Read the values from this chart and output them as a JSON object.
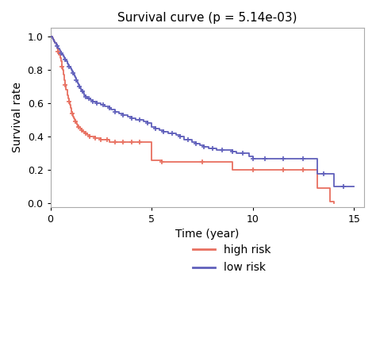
{
  "title": "Survival curve (p = 5.14e-03)",
  "xlabel": "Time (year)",
  "ylabel": "Survival rate",
  "xlim": [
    0,
    15.5
  ],
  "ylim": [
    -0.02,
    1.05
  ],
  "xticks": [
    0,
    5,
    10,
    15
  ],
  "yticks": [
    0.0,
    0.2,
    0.4,
    0.6,
    0.8,
    1.0
  ],
  "high_risk_color": "#E87060",
  "low_risk_color": "#6060BB",
  "high_risk_label": "high risk",
  "low_risk_label": "low risk",
  "background_color": "#ffffff",
  "high_risk_steps": [
    [
      0.0,
      1.0
    ],
    [
      0.08,
      0.99
    ],
    [
      0.12,
      0.98
    ],
    [
      0.18,
      0.97
    ],
    [
      0.22,
      0.96
    ],
    [
      0.28,
      0.95
    ],
    [
      0.32,
      0.93
    ],
    [
      0.38,
      0.91
    ],
    [
      0.42,
      0.89
    ],
    [
      0.48,
      0.87
    ],
    [
      0.52,
      0.85
    ],
    [
      0.56,
      0.82
    ],
    [
      0.6,
      0.8
    ],
    [
      0.65,
      0.77
    ],
    [
      0.7,
      0.74
    ],
    [
      0.74,
      0.71
    ],
    [
      0.78,
      0.68
    ],
    [
      0.82,
      0.65
    ],
    [
      0.86,
      0.63
    ],
    [
      0.9,
      0.61
    ],
    [
      0.94,
      0.59
    ],
    [
      0.98,
      0.57
    ],
    [
      1.02,
      0.55
    ],
    [
      1.06,
      0.54
    ],
    [
      1.1,
      0.52
    ],
    [
      1.14,
      0.51
    ],
    [
      1.18,
      0.5
    ],
    [
      1.22,
      0.49
    ],
    [
      1.26,
      0.48
    ],
    [
      1.3,
      0.47
    ],
    [
      1.35,
      0.46
    ],
    [
      1.4,
      0.46
    ],
    [
      1.45,
      0.45
    ],
    [
      1.5,
      0.45
    ],
    [
      1.55,
      0.44
    ],
    [
      1.6,
      0.43
    ],
    [
      1.65,
      0.43
    ],
    [
      1.7,
      0.42
    ],
    [
      1.75,
      0.42
    ],
    [
      1.8,
      0.41
    ],
    [
      1.85,
      0.41
    ],
    [
      1.9,
      0.41
    ],
    [
      1.95,
      0.4
    ],
    [
      2.0,
      0.4
    ],
    [
      2.1,
      0.4
    ],
    [
      2.2,
      0.39
    ],
    [
      2.3,
      0.39
    ],
    [
      2.4,
      0.39
    ],
    [
      2.5,
      0.38
    ],
    [
      2.6,
      0.38
    ],
    [
      2.7,
      0.38
    ],
    [
      2.8,
      0.38
    ],
    [
      2.9,
      0.37
    ],
    [
      3.0,
      0.37
    ],
    [
      3.2,
      0.37
    ],
    [
      3.4,
      0.37
    ],
    [
      3.6,
      0.37
    ],
    [
      3.8,
      0.37
    ],
    [
      4.0,
      0.37
    ],
    [
      4.2,
      0.37
    ],
    [
      4.4,
      0.37
    ],
    [
      4.6,
      0.37
    ],
    [
      4.8,
      0.37
    ],
    [
      5.0,
      0.26
    ],
    [
      5.2,
      0.26
    ],
    [
      5.5,
      0.25
    ],
    [
      6.0,
      0.25
    ],
    [
      7.0,
      0.25
    ],
    [
      8.0,
      0.25
    ],
    [
      9.0,
      0.2
    ],
    [
      10.0,
      0.2
    ],
    [
      10.5,
      0.2
    ],
    [
      11.0,
      0.2
    ],
    [
      11.5,
      0.2
    ],
    [
      12.0,
      0.2
    ],
    [
      12.5,
      0.2
    ],
    [
      13.0,
      0.2
    ],
    [
      13.2,
      0.09
    ],
    [
      13.5,
      0.09
    ],
    [
      13.8,
      0.01
    ],
    [
      14.0,
      0.0
    ]
  ],
  "high_risk_censors": [
    [
      0.38,
      0.91
    ],
    [
      0.56,
      0.82
    ],
    [
      0.74,
      0.71
    ],
    [
      0.9,
      0.61
    ],
    [
      1.06,
      0.54
    ],
    [
      1.22,
      0.49
    ],
    [
      1.4,
      0.46
    ],
    [
      1.55,
      0.44
    ],
    [
      1.75,
      0.42
    ],
    [
      1.95,
      0.4
    ],
    [
      2.2,
      0.39
    ],
    [
      2.5,
      0.38
    ],
    [
      2.8,
      0.38
    ],
    [
      3.2,
      0.37
    ],
    [
      3.6,
      0.37
    ],
    [
      4.0,
      0.37
    ],
    [
      4.4,
      0.37
    ],
    [
      5.5,
      0.25
    ],
    [
      7.5,
      0.25
    ],
    [
      10.0,
      0.2
    ],
    [
      11.5,
      0.2
    ],
    [
      12.5,
      0.2
    ]
  ],
  "low_risk_steps": [
    [
      0.0,
      1.0
    ],
    [
      0.08,
      0.99
    ],
    [
      0.13,
      0.98
    ],
    [
      0.18,
      0.97
    ],
    [
      0.23,
      0.96
    ],
    [
      0.28,
      0.95
    ],
    [
      0.33,
      0.94
    ],
    [
      0.38,
      0.93
    ],
    [
      0.43,
      0.92
    ],
    [
      0.48,
      0.91
    ],
    [
      0.53,
      0.9
    ],
    [
      0.58,
      0.89
    ],
    [
      0.63,
      0.88
    ],
    [
      0.68,
      0.87
    ],
    [
      0.73,
      0.86
    ],
    [
      0.78,
      0.85
    ],
    [
      0.83,
      0.84
    ],
    [
      0.88,
      0.83
    ],
    [
      0.93,
      0.82
    ],
    [
      0.98,
      0.81
    ],
    [
      1.02,
      0.8
    ],
    [
      1.06,
      0.79
    ],
    [
      1.1,
      0.78
    ],
    [
      1.14,
      0.77
    ],
    [
      1.18,
      0.76
    ],
    [
      1.22,
      0.75
    ],
    [
      1.26,
      0.74
    ],
    [
      1.3,
      0.73
    ],
    [
      1.34,
      0.72
    ],
    [
      1.38,
      0.71
    ],
    [
      1.42,
      0.7
    ],
    [
      1.46,
      0.69
    ],
    [
      1.5,
      0.68
    ],
    [
      1.54,
      0.67
    ],
    [
      1.58,
      0.67
    ],
    [
      1.62,
      0.66
    ],
    [
      1.66,
      0.65
    ],
    [
      1.7,
      0.65
    ],
    [
      1.74,
      0.64
    ],
    [
      1.78,
      0.64
    ],
    [
      1.82,
      0.63
    ],
    [
      1.86,
      0.63
    ],
    [
      1.9,
      0.63
    ],
    [
      1.94,
      0.63
    ],
    [
      1.98,
      0.62
    ],
    [
      2.02,
      0.62
    ],
    [
      2.1,
      0.61
    ],
    [
      2.2,
      0.61
    ],
    [
      2.3,
      0.6
    ],
    [
      2.4,
      0.6
    ],
    [
      2.5,
      0.59
    ],
    [
      2.6,
      0.59
    ],
    [
      2.7,
      0.58
    ],
    [
      2.8,
      0.58
    ],
    [
      2.9,
      0.57
    ],
    [
      3.0,
      0.56
    ],
    [
      3.2,
      0.55
    ],
    [
      3.4,
      0.54
    ],
    [
      3.6,
      0.53
    ],
    [
      3.8,
      0.52
    ],
    [
      4.0,
      0.51
    ],
    [
      4.2,
      0.5
    ],
    [
      4.4,
      0.5
    ],
    [
      4.6,
      0.49
    ],
    [
      4.8,
      0.48
    ],
    [
      5.0,
      0.46
    ],
    [
      5.2,
      0.45
    ],
    [
      5.4,
      0.44
    ],
    [
      5.6,
      0.43
    ],
    [
      5.8,
      0.42
    ],
    [
      6.0,
      0.42
    ],
    [
      6.2,
      0.41
    ],
    [
      6.4,
      0.4
    ],
    [
      6.6,
      0.38
    ],
    [
      6.8,
      0.38
    ],
    [
      7.0,
      0.37
    ],
    [
      7.2,
      0.36
    ],
    [
      7.4,
      0.35
    ],
    [
      7.6,
      0.34
    ],
    [
      7.8,
      0.33
    ],
    [
      8.0,
      0.33
    ],
    [
      8.2,
      0.32
    ],
    [
      8.5,
      0.32
    ],
    [
      8.8,
      0.32
    ],
    [
      9.0,
      0.31
    ],
    [
      9.2,
      0.3
    ],
    [
      9.5,
      0.3
    ],
    [
      9.8,
      0.28
    ],
    [
      10.0,
      0.27
    ],
    [
      10.3,
      0.27
    ],
    [
      10.6,
      0.27
    ],
    [
      11.0,
      0.27
    ],
    [
      11.5,
      0.27
    ],
    [
      12.0,
      0.27
    ],
    [
      12.5,
      0.27
    ],
    [
      13.0,
      0.27
    ],
    [
      13.2,
      0.18
    ],
    [
      13.5,
      0.18
    ],
    [
      13.8,
      0.18
    ],
    [
      14.0,
      0.1
    ],
    [
      14.5,
      0.1
    ],
    [
      15.0,
      0.1
    ]
  ],
  "low_risk_censors": [
    [
      0.33,
      0.94
    ],
    [
      0.53,
      0.9
    ],
    [
      0.73,
      0.86
    ],
    [
      0.93,
      0.82
    ],
    [
      1.1,
      0.78
    ],
    [
      1.26,
      0.74
    ],
    [
      1.42,
      0.7
    ],
    [
      1.58,
      0.67
    ],
    [
      1.74,
      0.64
    ],
    [
      1.9,
      0.63
    ],
    [
      2.1,
      0.61
    ],
    [
      2.3,
      0.6
    ],
    [
      2.6,
      0.59
    ],
    [
      2.9,
      0.57
    ],
    [
      3.2,
      0.55
    ],
    [
      3.6,
      0.53
    ],
    [
      4.0,
      0.51
    ],
    [
      4.4,
      0.5
    ],
    [
      4.8,
      0.48
    ],
    [
      5.2,
      0.45
    ],
    [
      5.6,
      0.43
    ],
    [
      6.0,
      0.42
    ],
    [
      6.4,
      0.4
    ],
    [
      6.8,
      0.38
    ],
    [
      7.2,
      0.36
    ],
    [
      7.6,
      0.34
    ],
    [
      8.0,
      0.33
    ],
    [
      8.5,
      0.32
    ],
    [
      9.0,
      0.31
    ],
    [
      9.5,
      0.3
    ],
    [
      10.0,
      0.27
    ],
    [
      10.6,
      0.27
    ],
    [
      11.5,
      0.27
    ],
    [
      12.5,
      0.27
    ],
    [
      13.5,
      0.18
    ],
    [
      14.5,
      0.1
    ]
  ]
}
